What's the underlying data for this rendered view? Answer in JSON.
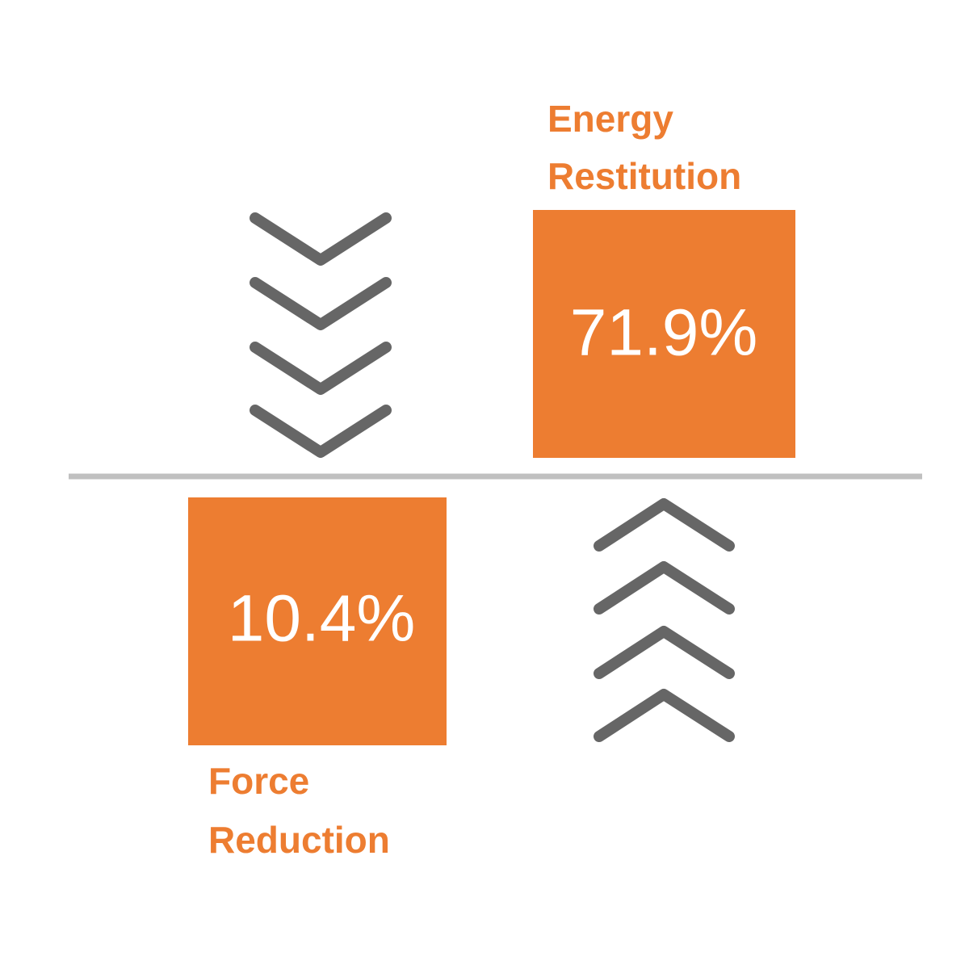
{
  "energy": {
    "label": [
      "Energy",
      "Restitution"
    ],
    "value": "71.9%"
  },
  "force": {
    "label": [
      "Force",
      "Reduction"
    ],
    "value": "10.4%"
  }
}
